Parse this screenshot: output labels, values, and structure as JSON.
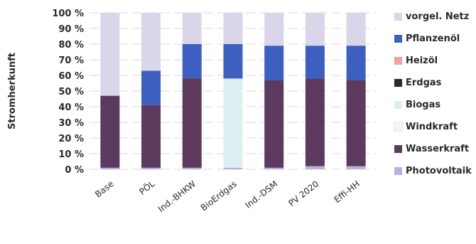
{
  "chart_data": {
    "type": "bar",
    "stacked": true,
    "ylabel": "Stromherkunft",
    "ylim": [
      0,
      100
    ],
    "yticks": [
      "0 %",
      "10 %",
      "20 %",
      "30 %",
      "40 %",
      "50 %",
      "60 %",
      "70 %",
      "80 %",
      "90 %",
      "100 %"
    ],
    "grid": true,
    "legend_position": "right",
    "categories": [
      "Base",
      "PÖL",
      "Ind.-BHKW",
      "BioErdgas",
      "Ind.-DSM",
      "PV 2020",
      "Effi-HH"
    ],
    "series": [
      {
        "name": "Photovoltaik",
        "color": "#b8b0e0",
        "values": [
          1,
          1,
          1,
          1,
          1,
          2,
          2
        ]
      },
      {
        "name": "Wasserkraft",
        "color": "#5b3a5e",
        "values": [
          46,
          40,
          57,
          0,
          56,
          56,
          55
        ]
      },
      {
        "name": "Windkraft",
        "color": "#f6f6ea",
        "values": [
          0,
          0,
          0,
          0,
          0,
          0,
          0
        ]
      },
      {
        "name": "Biogas",
        "color": "#dceff2",
        "values": [
          0,
          0,
          0,
          57,
          0,
          0,
          0
        ]
      },
      {
        "name": "Erdgas",
        "color": "#2b2b2b",
        "values": [
          0,
          0,
          0,
          0,
          0,
          0,
          0
        ]
      },
      {
        "name": "Heizöl",
        "color": "#f2a2a2",
        "values": [
          0,
          0,
          0,
          0,
          0,
          0,
          0
        ]
      },
      {
        "name": "Pflanzenöl",
        "color": "#3d5fc0",
        "values": [
          0,
          22,
          22,
          22,
          22,
          21,
          22
        ]
      },
      {
        "name": "vorgel. Netz",
        "color": "#d9d6ea",
        "values": [
          53,
          37,
          20,
          20,
          21,
          21,
          21
        ]
      }
    ]
  },
  "legend": {
    "items": [
      {
        "label": "vorgel. Netz",
        "color": "#d9d6ea"
      },
      {
        "label": "Pflanzenöl",
        "color": "#3d5fc0"
      },
      {
        "label": "Heizöl",
        "color": "#f2a2a2"
      },
      {
        "label": "Erdgas",
        "color": "#2b2b2b"
      },
      {
        "label": "Biogas",
        "color": "#dceff2"
      },
      {
        "label": "Windkraft",
        "color": "#f6f6ea"
      },
      {
        "label": "Wasserkraft",
        "color": "#5b3a5e"
      },
      {
        "label": "Photovoltaik",
        "color": "#b8b0e0"
      }
    ]
  }
}
